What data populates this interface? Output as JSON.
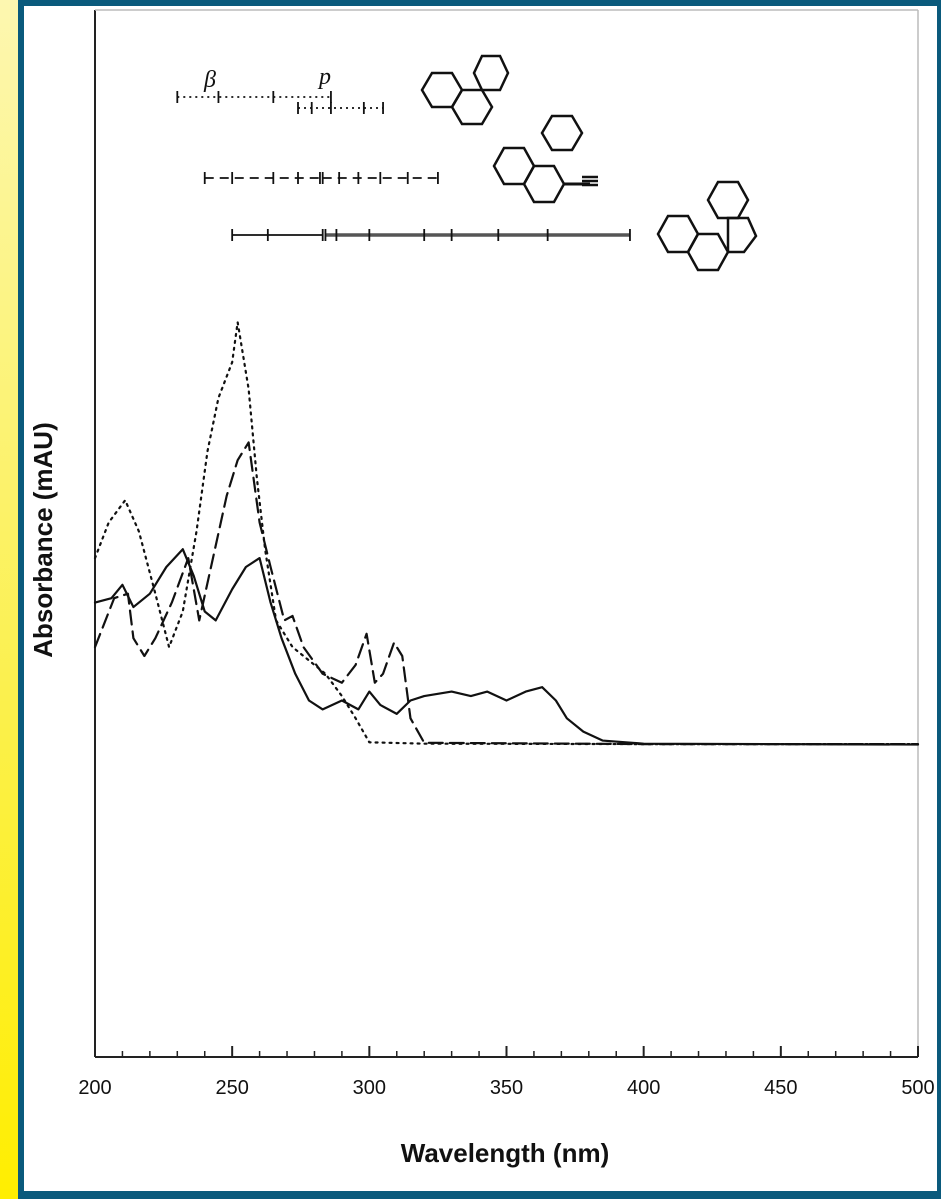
{
  "chart_data": {
    "type": "line",
    "title": "",
    "xlabel": "Wavelength (nm)",
    "ylabel": "Absorbance (mAU)",
    "xlim": [
      200,
      500
    ],
    "ylim": [
      0,
      100
    ],
    "x_ticks": [
      "200",
      "250",
      "300",
      "350",
      "400",
      "450",
      "500"
    ],
    "y_ticks_shown": false,
    "grid": false,
    "legend": "none",
    "band_labels": {
      "beta": "β",
      "p": "p"
    },
    "series": [
      {
        "style": "dotted",
        "color": "#111111",
        "points": [
          [
            200,
            42
          ],
          [
            205,
            50
          ],
          [
            211,
            55
          ],
          [
            216,
            48
          ],
          [
            222,
            34
          ],
          [
            227,
            22
          ],
          [
            232,
            30
          ],
          [
            237,
            48
          ],
          [
            241,
            66
          ],
          [
            245,
            78
          ],
          [
            250,
            86
          ],
          [
            252,
            95
          ],
          [
            256,
            80
          ],
          [
            259,
            60
          ],
          [
            262,
            44
          ],
          [
            266,
            28
          ],
          [
            272,
            22
          ],
          [
            278,
            19
          ],
          [
            284,
            16
          ],
          [
            290,
            11
          ],
          [
            295,
            6
          ],
          [
            300,
            0.6
          ],
          [
            320,
            0.3
          ],
          [
            400,
            0.2
          ],
          [
            500,
            0.2
          ]
        ]
      },
      {
        "style": "dashed",
        "color": "#111111",
        "points": [
          [
            200,
            22
          ],
          [
            207,
            33
          ],
          [
            212,
            34
          ],
          [
            214,
            24
          ],
          [
            218,
            20
          ],
          [
            222,
            24
          ],
          [
            228,
            32
          ],
          [
            234,
            42
          ],
          [
            238,
            28
          ],
          [
            243,
            42
          ],
          [
            248,
            56
          ],
          [
            252,
            64
          ],
          [
            256,
            68
          ],
          [
            260,
            50
          ],
          [
            264,
            40
          ],
          [
            269,
            28
          ],
          [
            272,
            29
          ],
          [
            276,
            22
          ],
          [
            283,
            16
          ],
          [
            290,
            14
          ],
          [
            295,
            18
          ],
          [
            299,
            25
          ],
          [
            302,
            14
          ],
          [
            305,
            16
          ],
          [
            309,
            23
          ],
          [
            312,
            20
          ],
          [
            315,
            6
          ],
          [
            320,
            0.5
          ],
          [
            400,
            0.2
          ],
          [
            500,
            0.2
          ]
        ]
      },
      {
        "style": "solid",
        "color": "#111111",
        "points": [
          [
            200,
            32
          ],
          [
            206,
            33
          ],
          [
            210,
            36
          ],
          [
            214,
            31
          ],
          [
            220,
            34
          ],
          [
            226,
            40
          ],
          [
            232,
            44
          ],
          [
            236,
            38
          ],
          [
            240,
            30
          ],
          [
            244,
            28
          ],
          [
            250,
            35
          ],
          [
            255,
            40
          ],
          [
            260,
            42
          ],
          [
            264,
            32
          ],
          [
            268,
            24
          ],
          [
            273,
            16
          ],
          [
            278,
            10
          ],
          [
            283,
            8
          ],
          [
            290,
            10
          ],
          [
            296,
            8
          ],
          [
            300,
            12
          ],
          [
            304,
            9
          ],
          [
            310,
            7
          ],
          [
            315,
            10
          ],
          [
            320,
            11
          ],
          [
            330,
            12
          ],
          [
            337,
            11
          ],
          [
            343,
            12
          ],
          [
            350,
            10
          ],
          [
            357,
            12
          ],
          [
            363,
            13
          ],
          [
            368,
            10
          ],
          [
            372,
            6
          ],
          [
            378,
            3
          ],
          [
            385,
            1
          ],
          [
            400,
            0.3
          ],
          [
            500,
            0.1
          ]
        ]
      }
    ],
    "markers": [
      {
        "series": 0,
        "segments": [
          {
            "from": 230,
            "to": 286,
            "style": "dotted",
            "ticks": [
              230,
              245,
              265,
              286
            ]
          },
          {
            "from": 274,
            "to": 305,
            "style": "dotted",
            "ticks": [
              274,
              279,
              286,
              298,
              305
            ]
          }
        ]
      },
      {
        "series": 1,
        "segments": [
          {
            "from": 240,
            "to": 282,
            "style": "dashed",
            "ticks": [
              240,
              250,
              265,
              274,
              282
            ]
          },
          {
            "from": 283,
            "to": 325,
            "style": "dashed",
            "ticks": [
              283,
              289,
              296,
              304,
              314,
              325
            ]
          }
        ]
      },
      {
        "series": 2,
        "segments": [
          {
            "from": 250,
            "to": 283,
            "style": "solid",
            "ticks": [
              250,
              263,
              283
            ]
          },
          {
            "from": 284,
            "to": 395,
            "style": "solid-thick",
            "ticks": [
              284,
              288,
              300,
              320,
              330,
              347,
              365,
              395
            ]
          }
        ]
      }
    ],
    "structures": [
      "phenanthrene",
      "methylphenanthrene",
      "fluoranthene-like"
    ]
  }
}
